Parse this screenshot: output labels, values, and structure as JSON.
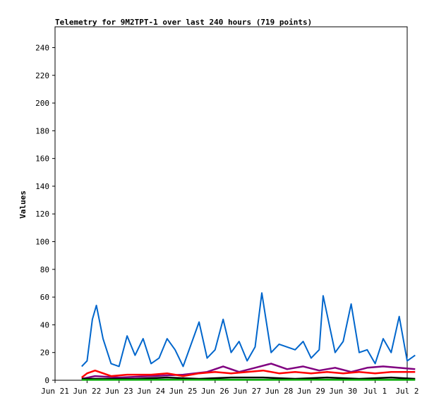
{
  "chart_data": {
    "type": "line",
    "title": "Telemetry for 9M2TPT-1 over last 240 hours (719 points)",
    "xlabel": "",
    "ylabel": "Values",
    "xlim": [
      "2024-06-21",
      "2024-07-02"
    ],
    "ylim": [
      0,
      255
    ],
    "x_ticks": [
      "Jun 21",
      "Jun 22",
      "Jun 23",
      "Jun 24",
      "Jun 25",
      "Jun 26",
      "Jun 27",
      "Jun 28",
      "Jun 29",
      "Jun 30",
      "Jul 1",
      "Jul 2"
    ],
    "y_ticks": [
      0,
      20,
      40,
      60,
      80,
      100,
      120,
      140,
      160,
      180,
      200,
      220,
      240
    ],
    "grid": false,
    "legend": "none",
    "series": [
      {
        "color": "#0066cc",
        "points": [
          [
            "2024-06-21 20:00",
            10
          ],
          [
            "2024-06-22 00:00",
            14
          ],
          [
            "2024-06-22 04:00",
            44
          ],
          [
            "2024-06-22 07:00",
            54
          ],
          [
            "2024-06-22 12:00",
            30
          ],
          [
            "2024-06-22 18:00",
            12
          ],
          [
            "2024-06-23 00:00",
            10
          ],
          [
            "2024-06-23 06:00",
            32
          ],
          [
            "2024-06-23 12:00",
            18
          ],
          [
            "2024-06-23 18:00",
            30
          ],
          [
            "2024-06-24 00:00",
            12
          ],
          [
            "2024-06-24 06:00",
            16
          ],
          [
            "2024-06-24 12:00",
            30
          ],
          [
            "2024-06-24 18:00",
            22
          ],
          [
            "2024-06-25 00:00",
            10
          ],
          [
            "2024-06-25 12:00",
            42
          ],
          [
            "2024-06-25 18:00",
            16
          ],
          [
            "2024-06-26 00:00",
            22
          ],
          [
            "2024-06-26 06:00",
            44
          ],
          [
            "2024-06-26 12:00",
            20
          ],
          [
            "2024-06-26 18:00",
            28
          ],
          [
            "2024-06-27 00:00",
            14
          ],
          [
            "2024-06-27 06:00",
            24
          ],
          [
            "2024-06-27 11:00",
            63
          ],
          [
            "2024-06-27 18:00",
            20
          ],
          [
            "2024-06-28 00:00",
            26
          ],
          [
            "2024-06-28 12:00",
            22
          ],
          [
            "2024-06-28 18:00",
            28
          ],
          [
            "2024-06-29 00:00",
            16
          ],
          [
            "2024-06-29 06:00",
            22
          ],
          [
            "2024-06-29 09:00",
            61
          ],
          [
            "2024-06-29 18:00",
            20
          ],
          [
            "2024-06-30 00:00",
            28
          ],
          [
            "2024-06-30 06:00",
            55
          ],
          [
            "2024-06-30 12:00",
            20
          ],
          [
            "2024-06-30 18:00",
            22
          ],
          [
            "2024-07-01 00:00",
            12
          ],
          [
            "2024-07-01 06:00",
            30
          ],
          [
            "2024-07-01 12:00",
            20
          ],
          [
            "2024-07-01 18:00",
            46
          ],
          [
            "2024-07-02 00:00",
            14
          ],
          [
            "2024-07-02 06:00",
            18
          ]
        ]
      },
      {
        "color": "#800080",
        "points": [
          [
            "2024-06-21 20:00",
            1
          ],
          [
            "2024-06-22 06:00",
            3
          ],
          [
            "2024-06-23 00:00",
            2
          ],
          [
            "2024-06-24 00:00",
            3
          ],
          [
            "2024-06-25 00:00",
            4
          ],
          [
            "2024-06-25 18:00",
            6
          ],
          [
            "2024-06-26 06:00",
            10
          ],
          [
            "2024-06-26 18:00",
            6
          ],
          [
            "2024-06-27 06:00",
            9
          ],
          [
            "2024-06-27 18:00",
            12
          ],
          [
            "2024-06-28 06:00",
            8
          ],
          [
            "2024-06-28 18:00",
            10
          ],
          [
            "2024-06-29 06:00",
            7
          ],
          [
            "2024-06-29 18:00",
            9
          ],
          [
            "2024-06-30 06:00",
            6
          ],
          [
            "2024-06-30 18:00",
            9
          ],
          [
            "2024-07-01 06:00",
            10
          ],
          [
            "2024-07-02 06:00",
            8
          ]
        ]
      },
      {
        "color": "#ff0000",
        "points": [
          [
            "2024-06-21 20:00",
            2
          ],
          [
            "2024-06-22 00:00",
            5
          ],
          [
            "2024-06-22 06:00",
            7
          ],
          [
            "2024-06-22 18:00",
            3
          ],
          [
            "2024-06-23 06:00",
            4
          ],
          [
            "2024-06-24 00:00",
            4
          ],
          [
            "2024-06-24 12:00",
            5
          ],
          [
            "2024-06-25 00:00",
            3
          ],
          [
            "2024-06-25 12:00",
            5
          ],
          [
            "2024-06-26 00:00",
            6
          ],
          [
            "2024-06-26 12:00",
            5
          ],
          [
            "2024-06-27 00:00",
            6
          ],
          [
            "2024-06-27 12:00",
            7
          ],
          [
            "2024-06-28 00:00",
            5
          ],
          [
            "2024-06-28 12:00",
            6
          ],
          [
            "2024-06-29 00:00",
            5
          ],
          [
            "2024-06-29 12:00",
            6
          ],
          [
            "2024-06-30 00:00",
            5
          ],
          [
            "2024-06-30 12:00",
            6
          ],
          [
            "2024-07-01 00:00",
            5
          ],
          [
            "2024-07-01 12:00",
            6
          ],
          [
            "2024-07-02 06:00",
            6
          ]
        ]
      },
      {
        "color": "#000000",
        "points": [
          [
            "2024-06-21 20:00",
            1
          ],
          [
            "2024-06-22 12:00",
            1
          ],
          [
            "2024-06-23 12:00",
            1
          ],
          [
            "2024-06-24 12:00",
            2
          ],
          [
            "2024-06-25 12:00",
            1
          ],
          [
            "2024-06-26 12:00",
            2
          ],
          [
            "2024-06-27 12:00",
            2
          ],
          [
            "2024-06-28 12:00",
            1
          ],
          [
            "2024-06-29 12:00",
            2
          ],
          [
            "2024-06-30 12:00",
            1
          ],
          [
            "2024-07-01 12:00",
            2
          ],
          [
            "2024-07-02 06:00",
            1
          ]
        ]
      },
      {
        "color": "#00aa00",
        "points": [
          [
            "2024-06-21 20:00",
            0.3
          ],
          [
            "2024-06-23 00:00",
            0.3
          ],
          [
            "2024-06-25 00:00",
            0.4
          ],
          [
            "2024-06-27 00:00",
            0.3
          ],
          [
            "2024-06-29 00:00",
            0.4
          ],
          [
            "2024-07-01 00:00",
            0.3
          ],
          [
            "2024-07-02 06:00",
            0.3
          ]
        ]
      }
    ]
  }
}
